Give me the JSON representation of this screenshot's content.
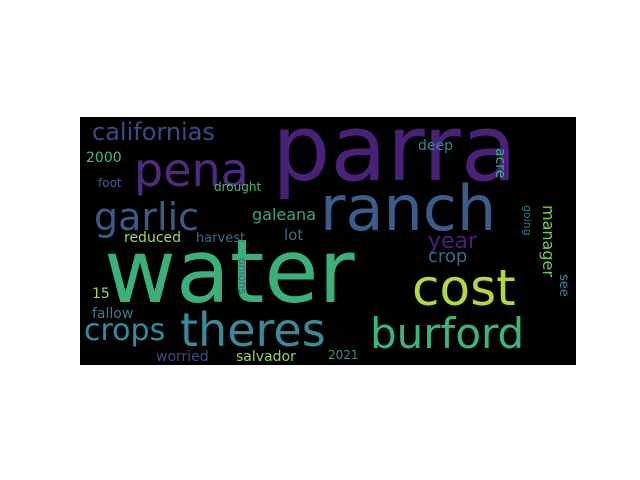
{
  "chart_data": {
    "type": "wordcloud",
    "background": "#000000",
    "words": [
      {
        "text": "parra",
        "color": "#4a2178"
      },
      {
        "text": "water",
        "color": "#3ab178"
      },
      {
        "text": "ranch",
        "color": "#3c5c8c"
      },
      {
        "text": "theres",
        "color": "#3a8a9a"
      },
      {
        "text": "burford",
        "color": "#35b878"
      },
      {
        "text": "cost",
        "color": "#b2d83e"
      },
      {
        "text": "pena",
        "color": "#4e2a82"
      },
      {
        "text": "garlic",
        "color": "#3a5a8a"
      },
      {
        "text": "crops",
        "color": "#2f8f9d"
      },
      {
        "text": "californias",
        "color": "#3c4a86"
      },
      {
        "text": "year",
        "color": "#4b1f7b"
      },
      {
        "text": "crop",
        "color": "#386a8e"
      },
      {
        "text": "manager",
        "color": "#78cc55"
      },
      {
        "text": "galeana",
        "color": "#35a784"
      },
      {
        "text": "reduced",
        "color": "#a6db45"
      },
      {
        "text": "harvest",
        "color": "#3a6b8f"
      },
      {
        "text": "lot",
        "color": "#3e6d8a"
      },
      {
        "text": "deep",
        "color": "#2f8a8e"
      },
      {
        "text": "acre",
        "color": "#3bad86"
      },
      {
        "text": "2000",
        "color": "#43c07a"
      },
      {
        "text": "foot",
        "color": "#3f5f8a"
      },
      {
        "text": "drought",
        "color": "#4bb87a"
      },
      {
        "text": "fallow",
        "color": "#3a7d90"
      },
      {
        "text": "15",
        "color": "#a0d848"
      },
      {
        "text": "worried",
        "color": "#404a86"
      },
      {
        "text": "salvador",
        "color": "#9ed64a"
      },
      {
        "text": "2021",
        "color": "#3e8c8c"
      },
      {
        "text": "onions",
        "color": "#30638d"
      },
      {
        "text": "going",
        "color": "#2f7a8e"
      },
      {
        "text": "see",
        "color": "#3a8a9a"
      }
    ]
  }
}
